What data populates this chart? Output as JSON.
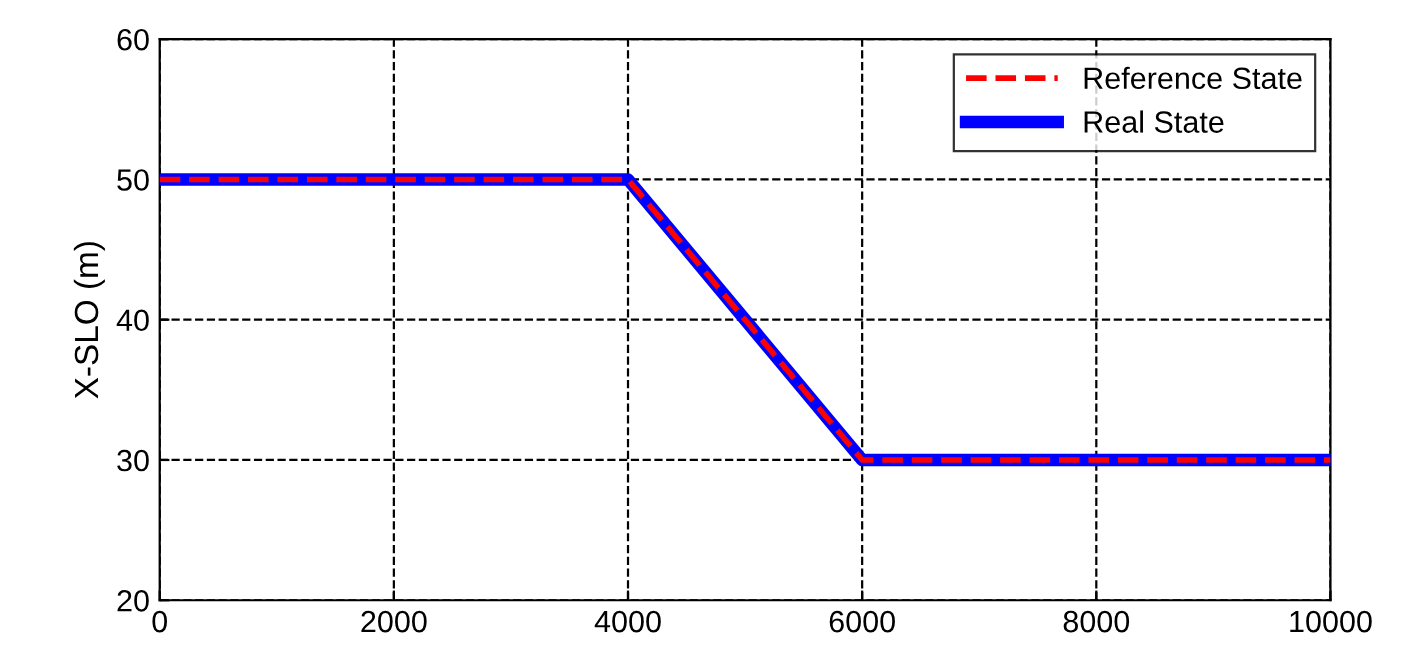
{
  "chart_data": {
    "type": "line",
    "ylabel": "X-SLO (m)",
    "xlim": [
      0,
      10000
    ],
    "xticks": [
      0,
      2000,
      4000,
      6000,
      8000,
      10000
    ],
    "ylim": [
      20,
      60
    ],
    "yticks": [
      20,
      30,
      40,
      50,
      60
    ],
    "grid": true,
    "legend": "top right",
    "series": [
      {
        "name": "Reference State",
        "color": "#ff0000",
        "line_style": "dashed",
        "x": [
          0,
          4000,
          6000,
          10000
        ],
        "values": [
          50,
          50,
          30,
          30
        ]
      },
      {
        "name": "Real State",
        "color": "#0000ff",
        "line_style": "solid",
        "x": [
          0,
          4000,
          6000,
          10000
        ],
        "values": [
          50,
          50,
          30,
          30
        ]
      }
    ]
  }
}
